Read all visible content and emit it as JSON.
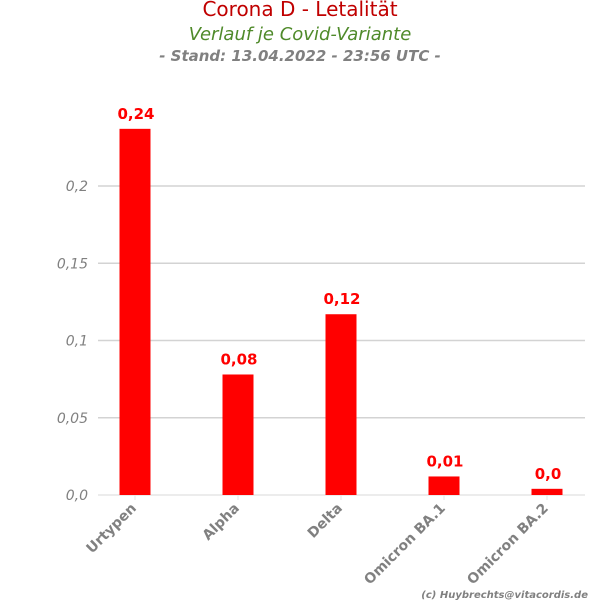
{
  "chart_data": {
    "type": "bar",
    "title": "Corona D - Letalität",
    "subtitle": "Verlauf je Covid-Variante",
    "stand": "- Stand: 13.04.2022 - 23:56 UTC -",
    "categories": [
      "Urtypen",
      "Alpha",
      "Delta",
      "Omicron BA.1",
      "Omicron BA.2"
    ],
    "values": [
      0.237,
      0.078,
      0.117,
      0.012,
      0.004
    ],
    "data_labels": [
      "0,24",
      "0,08",
      "0,12",
      "0,01",
      "0,0"
    ],
    "yticks": [
      0,
      0.05,
      0.1,
      0.15,
      0.2
    ],
    "ytick_labels": [
      "0,0",
      "0,05",
      "0,1",
      "0,15",
      "0,2"
    ],
    "ylim": [
      0,
      0.25
    ],
    "xlabel": "",
    "ylabel": "",
    "grid": true,
    "bar_color": "#ff0000",
    "credit": "(c) Huybrechts@vitacordis.de"
  }
}
